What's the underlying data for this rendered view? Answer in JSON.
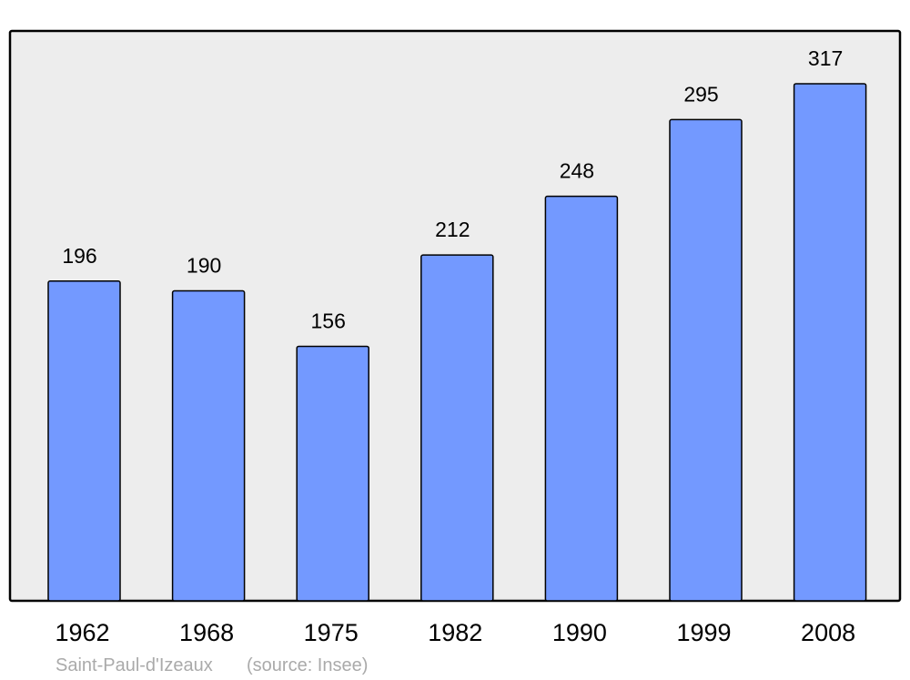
{
  "chart_data": {
    "type": "bar",
    "categories": [
      "1962",
      "1968",
      "1975",
      "1982",
      "1990",
      "1999",
      "2008"
    ],
    "values": [
      196,
      190,
      156,
      212,
      248,
      295,
      317
    ],
    "title": "",
    "xlabel": "",
    "ylabel": "",
    "ylim": [
      0,
      349
    ],
    "grid": false,
    "data_labels": true,
    "colors": {
      "bar": "#7399ff",
      "plot_background": "#ededed",
      "border": "#000000"
    }
  },
  "footer": {
    "place": "Saint-Paul-d'Izeaux",
    "source": "(source: Insee)"
  }
}
